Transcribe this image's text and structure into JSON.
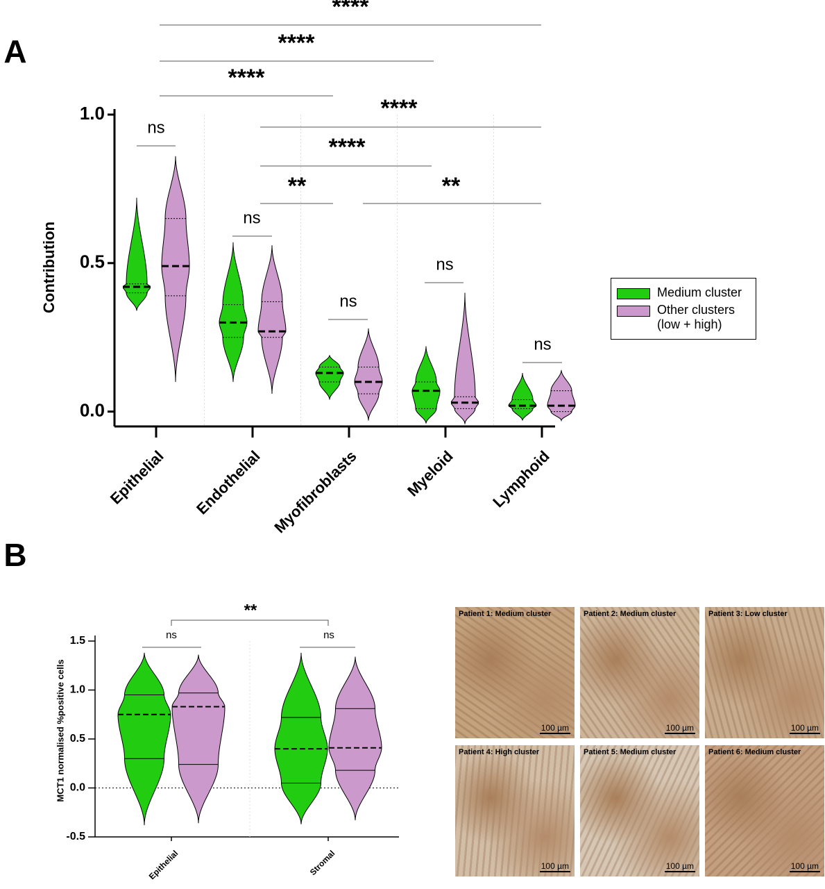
{
  "chart_data": [
    {
      "type": "violin",
      "panel_label": "A",
      "y_label": "Contribution",
      "categories": [
        "Epithelial",
        "Endothelial",
        "Myofibroblasts",
        "Myeloid",
        "Lymphoid"
      ],
      "series": [
        {
          "name": "Medium cluster",
          "color": "#22cc11",
          "medians": [
            0.42,
            0.3,
            0.13,
            0.07,
            0.02
          ],
          "q1": [
            0.4,
            0.25,
            0.1,
            0.01,
            0.01
          ],
          "q3": [
            0.43,
            0.36,
            0.15,
            0.1,
            0.04
          ],
          "min": [
            0.34,
            0.1,
            0.04,
            -0.04,
            -0.03
          ],
          "max": [
            0.72,
            0.57,
            0.19,
            0.22,
            0.13
          ]
        },
        {
          "name": "Other clusters (low + high)",
          "color": "#cc99cc",
          "medians": [
            0.49,
            0.27,
            0.1,
            0.03,
            0.02
          ],
          "q1": [
            0.39,
            0.25,
            0.06,
            0.01,
            0.0
          ],
          "q3": [
            0.65,
            0.37,
            0.15,
            0.05,
            0.07
          ],
          "min": [
            0.1,
            0.06,
            -0.03,
            -0.04,
            -0.03
          ],
          "max": [
            0.86,
            0.56,
            0.28,
            0.4,
            0.14
          ]
        }
      ],
      "ylim": [
        -0.05,
        1.0
      ],
      "yticks": [
        {
          "value": 0,
          "label": "0.0"
        },
        0.5,
        {
          "value": 1,
          "label": "1.0"
        }
      ],
      "annotations": [
        "****",
        "****",
        "****",
        "****",
        "****",
        "**",
        "**",
        "ns",
        "ns",
        "ns",
        "ns",
        "ns"
      ]
    },
    {
      "type": "violin",
      "panel_label": "B",
      "y_label": "MCT1 normalised %positive cells",
      "categories": [
        "Epithelial",
        "Stromal"
      ],
      "series": [
        {
          "name": "Medium cluster",
          "color": "#22cc11",
          "medians": [
            0.75,
            0.4
          ],
          "q1": [
            0.3,
            0.05
          ],
          "q3": [
            0.95,
            0.72
          ],
          "min": [
            -0.38,
            -0.37
          ],
          "max": [
            1.38,
            1.38
          ]
        },
        {
          "name": "Other clusters (low + high)",
          "color": "#cc99cc",
          "medians": [
            0.83,
            0.41
          ],
          "q1": [
            0.24,
            0.18
          ],
          "q3": [
            0.97,
            0.81
          ],
          "min": [
            -0.36,
            -0.33
          ],
          "max": [
            1.36,
            1.34
          ]
        }
      ],
      "ylim": [
        -0.5,
        1.5
      ],
      "yticks": [
        -0.5,
        {
          "value": 0,
          "label": "0.0"
        },
        0.5,
        {
          "value": 1,
          "label": "1.0"
        },
        1.5
      ],
      "reference_line": 0,
      "annotations": [
        "**",
        "ns",
        "ns"
      ]
    }
  ],
  "images": [
    {
      "title": "Patient 1: Medium cluster",
      "scale": "100 µm"
    },
    {
      "title": "Patient 2: Medium cluster",
      "scale": "100 µm"
    },
    {
      "title": "Patient 3: Low cluster",
      "scale": "100 µm"
    },
    {
      "title": "Patient 4: High cluster",
      "scale": "100 µm"
    },
    {
      "title": "Patient 5: Medium cluster",
      "scale": "100 µm"
    },
    {
      "title": "Patient 6: Medium cluster",
      "scale": "100 µm"
    }
  ]
}
